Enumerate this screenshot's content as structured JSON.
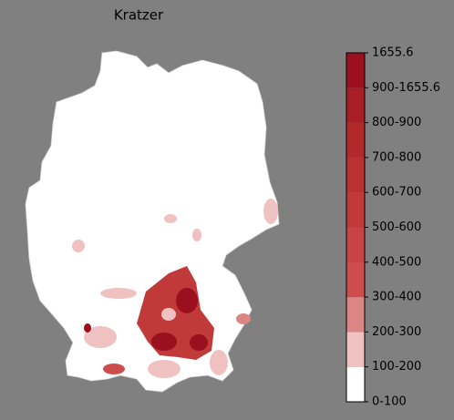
{
  "title": "Kratzer",
  "colorbar": {
    "labels": [
      "0-100",
      "100-200",
      "200-300",
      "300-400",
      "400-500",
      "500-600",
      "600-700",
      "700-800",
      "800-900",
      "900-1655.6",
      "1655.6"
    ],
    "colors": [
      "#ffffff",
      "#efc1c1",
      "#dc8585",
      "#cd4c4c",
      "#c84343",
      "#c13a3a",
      "#b93131",
      "#b12929",
      "#a81e25",
      "#9b0f1f"
    ]
  }
}
